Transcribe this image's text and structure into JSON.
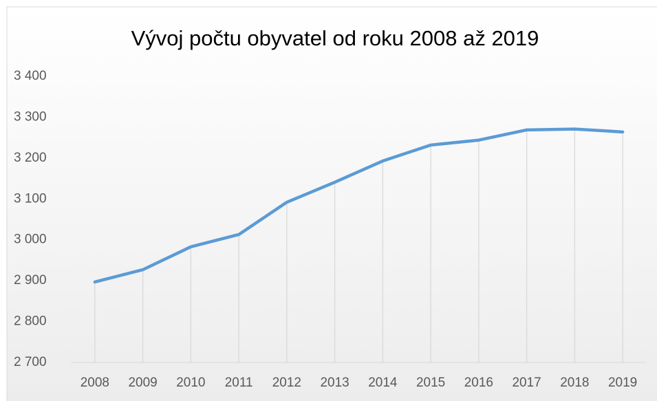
{
  "chart_data": {
    "type": "line",
    "title": "Vývoj počtu obyvatel od roku 2008 až 2019",
    "categories": [
      "2008",
      "2009",
      "2010",
      "2011",
      "2012",
      "2013",
      "2014",
      "2015",
      "2016",
      "2017",
      "2018",
      "2019"
    ],
    "values": [
      2897,
      2927,
      2983,
      3013,
      3092,
      3141,
      3193,
      3232,
      3244,
      3269,
      3271,
      3264
    ],
    "color": "#5b9bd5",
    "ylim": [
      2700,
      3400
    ],
    "yticks": [
      {
        "value": 2700,
        "label": "2 700"
      },
      {
        "value": 2800,
        "label": "2 800"
      },
      {
        "value": 2900,
        "label": "2 900"
      },
      {
        "value": 3000,
        "label": "3 000"
      },
      {
        "value": 3100,
        "label": "3 100"
      },
      {
        "value": 3200,
        "label": "3 200"
      },
      {
        "value": 3300,
        "label": "3 300"
      },
      {
        "value": 3400,
        "label": "3 400"
      }
    ],
    "grid": false,
    "drop_lines": true
  }
}
